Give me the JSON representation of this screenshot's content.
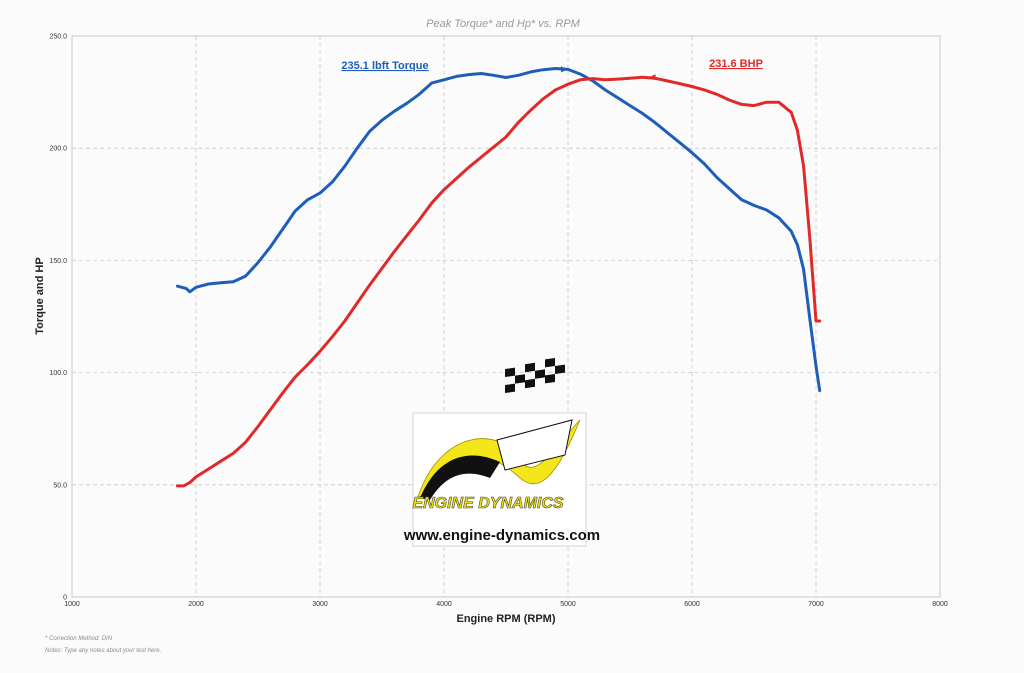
{
  "chart_data": {
    "type": "line",
    "title": "Peak Torque* and Hp* vs. RPM",
    "xlabel": "Engine RPM (RPM)",
    "ylabel": "Torque and HP",
    "xlim": [
      1000,
      8000
    ],
    "ylim": [
      0,
      250
    ],
    "x_ticks": [
      "1000",
      "2000",
      "3000",
      "4000",
      "5000",
      "6000",
      "7000",
      "8000"
    ],
    "y_ticks": [
      "0",
      "50.0",
      "100.0",
      "150.0",
      "200.0",
      "250.0"
    ],
    "grid": true,
    "series": [
      {
        "name": "Torque",
        "color": "#1f5eb8",
        "x": [
          1850,
          1920,
          1950,
          2000,
          2100,
          2200,
          2300,
          2400,
          2500,
          2600,
          2700,
          2800,
          2900,
          3000,
          3100,
          3200,
          3300,
          3400,
          3500,
          3600,
          3700,
          3800,
          3900,
          4000,
          4100,
          4200,
          4300,
          4400,
          4500,
          4600,
          4700,
          4800,
          4900,
          5000,
          5100,
          5200,
          5300,
          5400,
          5500,
          5600,
          5700,
          5800,
          5900,
          6000,
          6100,
          6200,
          6300,
          6400,
          6500,
          6600,
          6700,
          6800,
          6850,
          6900,
          6950,
          7000,
          7030
        ],
        "values": [
          138.5,
          137.5,
          136.0,
          138.0,
          139.5,
          140.0,
          140.5,
          143.0,
          149.0,
          156.0,
          164.0,
          172.0,
          177.0,
          180.0,
          185.0,
          192.0,
          200.0,
          207.5,
          212.5,
          216.5,
          220.0,
          224.0,
          229.0,
          230.5,
          232.0,
          232.8,
          233.3,
          232.5,
          231.5,
          232.5,
          234.0,
          235.0,
          235.5,
          235.1,
          233.0,
          230.0,
          226.0,
          222.5,
          219.0,
          215.5,
          211.5,
          207.0,
          202.5,
          198.0,
          193.0,
          187.0,
          182.0,
          177.0,
          174.5,
          172.5,
          169.0,
          163.0,
          157.0,
          146.0,
          124.0,
          103.0,
          92.0
        ]
      },
      {
        "name": "BHP",
        "color": "#e02a2a",
        "x": [
          1850,
          1900,
          1950,
          2000,
          2100,
          2200,
          2300,
          2400,
          2500,
          2600,
          2700,
          2800,
          2900,
          3000,
          3100,
          3200,
          3300,
          3400,
          3500,
          3600,
          3700,
          3800,
          3900,
          4000,
          4100,
          4200,
          4300,
          4400,
          4500,
          4600,
          4700,
          4800,
          4900,
          5000,
          5100,
          5200,
          5300,
          5400,
          5500,
          5600,
          5700,
          5800,
          5900,
          6000,
          6100,
          6200,
          6300,
          6400,
          6500,
          6600,
          6700,
          6800,
          6850,
          6900,
          6950,
          7000,
          7030
        ],
        "values": [
          49.5,
          49.5,
          51.0,
          53.5,
          57.0,
          60.5,
          64.0,
          69.0,
          76.0,
          83.5,
          91.0,
          98.0,
          103.5,
          109.5,
          116.0,
          123.0,
          131.0,
          139.0,
          146.5,
          154.0,
          161.0,
          168.0,
          175.5,
          181.5,
          186.5,
          191.5,
          196.0,
          200.5,
          205.0,
          211.5,
          217.0,
          222.0,
          226.0,
          228.5,
          230.5,
          231.0,
          230.5,
          230.8,
          231.2,
          231.6,
          231.2,
          230.0,
          228.8,
          227.5,
          226.0,
          224.0,
          221.5,
          219.5,
          219.0,
          220.5,
          220.5,
          216.0,
          208.0,
          192.0,
          160.0,
          123.0,
          123.0
        ]
      }
    ],
    "annotations": [
      {
        "text": "235.1 lbft Torque",
        "color": "#1f5eb8",
        "x": 5000,
        "y": 235.1
      },
      {
        "text": "231.6 BHP",
        "color": "#e02a2a",
        "x": 5650,
        "y": 231.6
      }
    ]
  },
  "logo": {
    "name": "ENGINE DYNAMICS",
    "url": "www.engine-dynamics.com"
  },
  "footnotes": {
    "correction": "* Correction Method: DIN",
    "notes": "Notes: Type any notes about your test here."
  }
}
